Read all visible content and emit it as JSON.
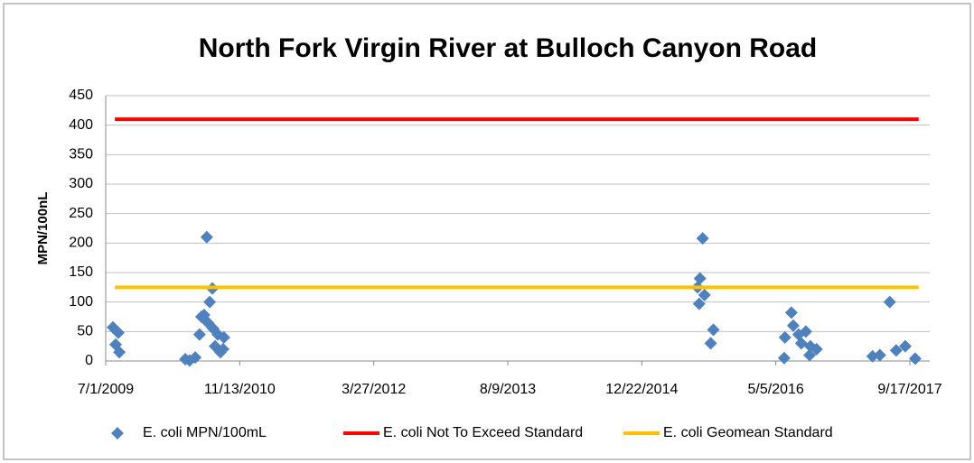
{
  "chart_data": {
    "type": "scatter",
    "title": "North Fork Virgin River at Bulloch Canyon Road",
    "y_label": "MPN/100nL",
    "xlim": [
      "7/1/2009",
      "9/17/2017"
    ],
    "xticks": [
      "7/1/2009",
      "11/13/2010",
      "3/27/2012",
      "8/9/2013",
      "12/22/2014",
      "5/5/2016",
      "9/17/2017"
    ],
    "ylim": [
      0,
      450
    ],
    "yticks": [
      0,
      50,
      100,
      150,
      200,
      250,
      300,
      350,
      400,
      450
    ],
    "grid": true,
    "legend": "bottom",
    "series": [
      {
        "name": "E. coli MPN/100mL",
        "type": "scatter",
        "color": "#4f81bd",
        "x": [
          "7/28/2009",
          "8/7/2009",
          "8/17/2009",
          "8/21/2009",
          "4/24/2010",
          "5/10/2010",
          "5/31/2010",
          "6/16/2010",
          "6/23/2010",
          "7/3/2010",
          "7/13/2010",
          "7/17/2010",
          "7/24/2010",
          "8/3/2010",
          "8/6/2010",
          "8/13/2010",
          "8/23/2010",
          "9/2/2010",
          "9/15/2010",
          "9/12/2010",
          "7/18/2015",
          "7/24/2015",
          "7/27/2015",
          "8/6/2015",
          "8/13/2015",
          "9/5/2015",
          "9/15/2015",
          "6/5/2016",
          "6/8/2016",
          "7/2/2016",
          "7/9/2016",
          "7/29/2016",
          "8/8/2016",
          "8/25/2016",
          "9/8/2016",
          "9/11/2016",
          "10/4/2016",
          "5/1/2017",
          "5/28/2017",
          "7/4/2017",
          "7/28/2017",
          "8/31/2017",
          "10/7/2017"
        ],
        "values": [
          57,
          28,
          48,
          15,
          3,
          1,
          6,
          45,
          75,
          78,
          210,
          65,
          100,
          123,
          55,
          25,
          45,
          15,
          40,
          20,
          125,
          97,
          140,
          208,
          112,
          30,
          53,
          5,
          40,
          82,
          60,
          45,
          30,
          50,
          10,
          25,
          20,
          8,
          10,
          100,
          18,
          25,
          4
        ]
      },
      {
        "name": "E. coli Not To Exceed Standard",
        "type": "line",
        "color": "#ff0000",
        "x": [
          "8/4/2009",
          "10/20/2017"
        ],
        "values": [
          410,
          410
        ]
      },
      {
        "name": "E. coli Geomean Standard",
        "type": "line",
        "color": "#ffc000",
        "x": [
          "8/4/2009",
          "10/20/2017"
        ],
        "values": [
          125,
          125
        ]
      }
    ]
  }
}
